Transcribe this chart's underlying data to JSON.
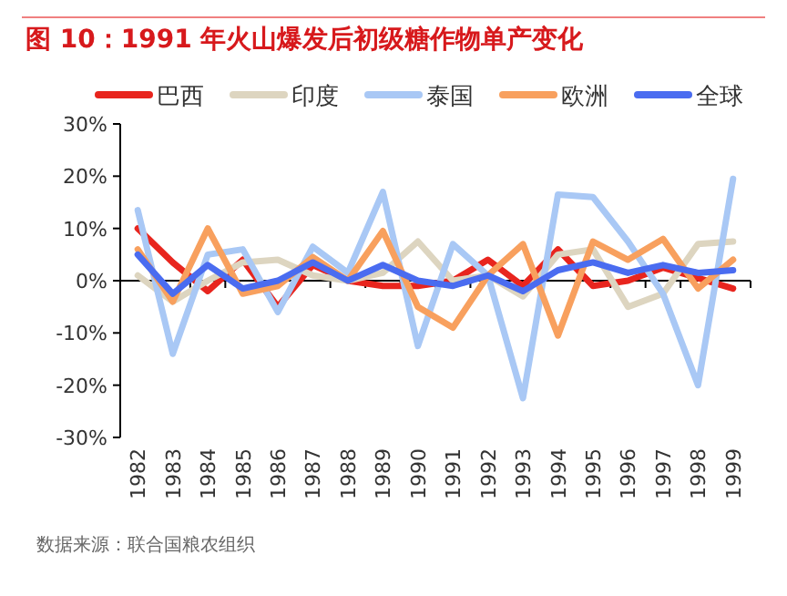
{
  "chart_data": {
    "type": "line",
    "title": "图 10：1991 年火山爆发后初级糖作物单产变化",
    "categories": [
      "1982",
      "1983",
      "1984",
      "1985",
      "1986",
      "1987",
      "1988",
      "1989",
      "1990",
      "1991",
      "1992",
      "1993",
      "1994",
      "1995",
      "1996",
      "1997",
      "1998",
      "1999"
    ],
    "series": [
      {
        "name": "巴西",
        "color": "#e8251e",
        "values": [
          10,
          3.5,
          -2,
          4,
          -5,
          3,
          0,
          -1,
          -1,
          0,
          4,
          -1,
          6,
          -1,
          0,
          2.5,
          0.5,
          -1.5
        ]
      },
      {
        "name": "印度",
        "color": "#ddd5c0",
        "values": [
          1,
          -4,
          0,
          3.5,
          4,
          1,
          0,
          1.5,
          7.5,
          0,
          1,
          -3,
          5,
          6,
          -5,
          -2.5,
          7,
          7.5
        ]
      },
      {
        "name": "泰国",
        "color": "#a9c8f5",
        "values": [
          13.5,
          -14,
          5,
          6,
          -6,
          6.5,
          1.5,
          17,
          -12.5,
          7,
          1,
          -22.5,
          16.5,
          16,
          7.5,
          -2.5,
          -20,
          19.5
        ]
      },
      {
        "name": "欧洲",
        "color": "#f8a05e",
        "values": [
          6,
          -4,
          10,
          -2.5,
          -1,
          4.5,
          0,
          9.5,
          -5,
          -9,
          1,
          7,
          -10.5,
          7.5,
          4,
          8,
          -1.5,
          4
        ]
      },
      {
        "name": "全球",
        "color": "#4a6cf0",
        "values": [
          5,
          -2.5,
          3,
          -1.5,
          0,
          3.5,
          0,
          3,
          0,
          -1,
          1,
          -2,
          2,
          3.5,
          1.5,
          3,
          1.5,
          2
        ]
      }
    ],
    "ylim": [
      -30,
      30
    ],
    "yticks": [
      {
        "value": -30,
        "label": "-30%"
      },
      {
        "value": -20,
        "label": "-20%"
      },
      {
        "value": -10,
        "label": "-10%"
      },
      {
        "value": 0,
        "label": "0%"
      },
      {
        "value": 10,
        "label": "10%"
      },
      {
        "value": 20,
        "label": "20%"
      },
      {
        "value": 30,
        "label": "30%"
      }
    ],
    "legend": "top",
    "line_style": "solid",
    "annotations": [
      "数据来源：联合国粮农组织"
    ]
  }
}
